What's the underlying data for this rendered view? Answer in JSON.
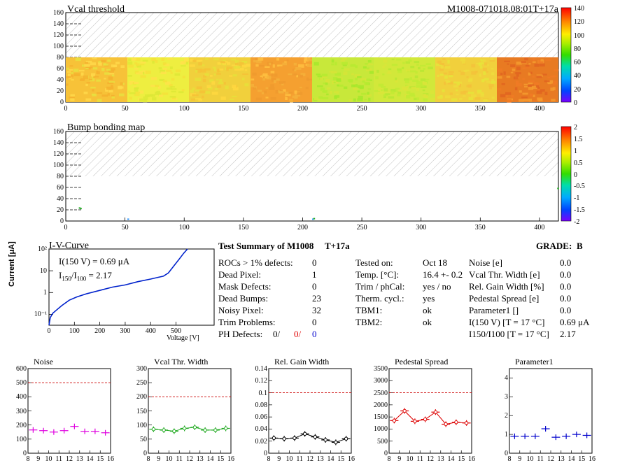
{
  "header": {
    "title_left": "Vcal threshold",
    "title_right": "M1008-071018.08:01T+17a"
  },
  "vcal": {
    "x_ticks": [
      "0",
      "50",
      "100",
      "150",
      "200",
      "250",
      "300",
      "350",
      "400"
    ],
    "y_ticks": [
      "0",
      "20",
      "40",
      "60",
      "80",
      "100",
      "120",
      "140",
      "160"
    ],
    "colorbar": [
      "0",
      "20",
      "40",
      "60",
      "80",
      "100",
      "120",
      "140"
    ]
  },
  "bump": {
    "title": "Bump bonding map",
    "x_ticks": [
      "0",
      "50",
      "100",
      "150",
      "200",
      "250",
      "300",
      "350",
      "400"
    ],
    "y_ticks": [
      "0",
      "20",
      "40",
      "60",
      "80",
      "100",
      "120",
      "140",
      "160"
    ],
    "colorbar": [
      "-2",
      "-1.5",
      "-1",
      "-0.5",
      "0",
      "0.5",
      "1",
      "1.5",
      "2"
    ]
  },
  "iv": {
    "title": "I-V-Curve",
    "ylabel": "Current [μA]",
    "xlabel": "Voltage [V]",
    "line1": "I(150 V) = 0.69 μA",
    "line2_a": "I",
    "line2_sub1": "150",
    "line2_b": "/I",
    "line2_sub2": "100",
    "line2_c": " =  2.17",
    "x_ticks": [
      "0",
      "100",
      "200",
      "300",
      "400",
      "500"
    ],
    "y_ticks": [
      "10⁻¹",
      "1",
      "10",
      "10²"
    ]
  },
  "summary": {
    "title": "Test Summary of M1008",
    "tag": "T+17a",
    "grade_label": "GRADE:",
    "grade": "B",
    "left": [
      {
        "label": "ROCs > 1% defects:",
        "value": "0"
      },
      {
        "label": "Dead Pixel:",
        "value": "1"
      },
      {
        "label": "Mask Defects:",
        "value": "0"
      },
      {
        "label": "Dead Bumps:",
        "value": "23"
      },
      {
        "label": "Noisy Pixel:",
        "value": "32"
      },
      {
        "label": "Trim Problems:",
        "value": "0"
      }
    ],
    "ph_label": "PH Defects:",
    "ph_values": [
      "0/",
      "0/",
      "0"
    ],
    "mid": [
      {
        "label": "Tested on:",
        "value": "Oct 18"
      },
      {
        "label": "Temp. [°C]:",
        "value": "16.4 +- 0.2"
      },
      {
        "label": "Trim / phCal:",
        "value": "yes / no"
      },
      {
        "label": "Therm. cycl.:",
        "value": "yes"
      },
      {
        "label": "TBM1:",
        "value": "ok"
      },
      {
        "label": "TBM2:",
        "value": "ok"
      }
    ],
    "right": [
      {
        "label": "Noise [e]",
        "value": "0.0"
      },
      {
        "label": "Vcal Thr. Width [e]",
        "value": "0.0"
      },
      {
        "label": "Rel. Gain Width [%]",
        "value": "0.0"
      },
      {
        "label": "Pedestal Spread [e]",
        "value": "0.0"
      },
      {
        "label": "Parameter1 []",
        "value": "0.0"
      },
      {
        "label": "I(150 V) [T = 17 °C]",
        "value": "0.69 μA"
      },
      {
        "label": "I150/I100  [T = 17 °C]",
        "value": "2.17"
      }
    ]
  },
  "chart_data": [
    {
      "type": "scatter",
      "title": "Noise",
      "x": [
        8.5,
        9.5,
        10.5,
        11.5,
        12.5,
        13.5,
        14.5,
        15.5
      ],
      "values": [
        165,
        160,
        150,
        160,
        190,
        155,
        155,
        145
      ],
      "ylim": [
        0,
        600
      ],
      "xlim": [
        8,
        16
      ],
      "ref": 500,
      "y_ticks": [
        "0",
        "100",
        "200",
        "300",
        "400",
        "500",
        "600"
      ],
      "color": "#e000e0"
    },
    {
      "type": "line",
      "title": "Vcal Thr. Width",
      "x": [
        8.5,
        9.5,
        10.5,
        11.5,
        12.5,
        13.5,
        14.5,
        15.5
      ],
      "values": [
        85,
        82,
        78,
        88,
        92,
        82,
        82,
        88
      ],
      "ylim": [
        0,
        300
      ],
      "xlim": [
        8,
        16
      ],
      "ref": 200,
      "y_ticks": [
        "0",
        "50",
        "100",
        "150",
        "200",
        "250",
        "300"
      ],
      "color": "#22aa22"
    },
    {
      "type": "line",
      "title": "Rel. Gain Width",
      "x": [
        8.5,
        9.5,
        10.5,
        11.5,
        12.5,
        13.5,
        14.5,
        15.5
      ],
      "values": [
        0.025,
        0.024,
        0.025,
        0.032,
        0.027,
        0.022,
        0.018,
        0.024
      ],
      "ylim": [
        0,
        0.14
      ],
      "xlim": [
        8,
        16
      ],
      "ref": 0.1,
      "y_ticks": [
        "0",
        "0.02",
        "0.04",
        "0.06",
        "0.08",
        "0.1",
        "0.12",
        "0.14"
      ],
      "color": "#000000"
    },
    {
      "type": "line",
      "title": "Pedestal Spread",
      "x": [
        8.5,
        9.5,
        10.5,
        11.5,
        12.5,
        13.5,
        14.5,
        15.5
      ],
      "values": [
        1350,
        1750,
        1320,
        1400,
        1700,
        1200,
        1280,
        1250
      ],
      "ylim": [
        0,
        3500
      ],
      "xlim": [
        8,
        16
      ],
      "ref": 2500,
      "y_ticks": [
        "0",
        "500",
        "1000",
        "1500",
        "2000",
        "2500",
        "3000",
        "3500"
      ],
      "color": "#dd0000"
    },
    {
      "type": "scatter",
      "title": "Parameter1",
      "x": [
        8.5,
        9.5,
        10.5,
        11.5,
        12.5,
        13.5,
        14.5,
        15.5
      ],
      "values": [
        0.9,
        0.9,
        0.9,
        1.3,
        0.85,
        0.9,
        1.0,
        0.95
      ],
      "ylim": [
        0,
        4.5
      ],
      "xlim": [
        8,
        16
      ],
      "y_ticks": [
        "0",
        "1",
        "2",
        "3",
        "4"
      ],
      "color": "#0000cc"
    }
  ],
  "bottom_x_ticks": [
    "8",
    "9",
    "10",
    "11",
    "12",
    "13",
    "14",
    "15",
    "16"
  ]
}
